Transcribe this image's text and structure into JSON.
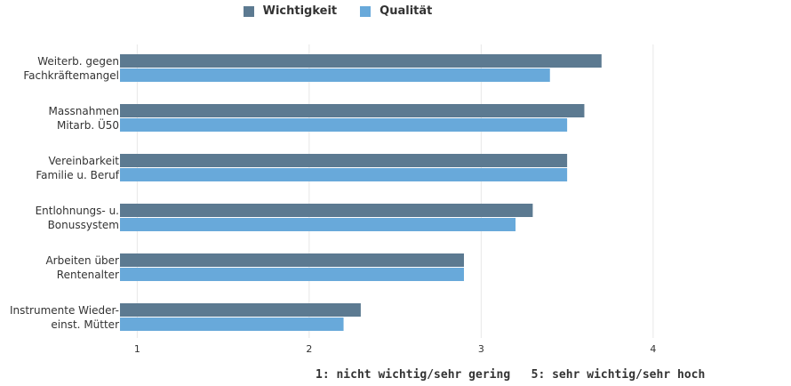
{
  "colors": {
    "wichtigkeit": "#5c7a91",
    "qualitaet": "#68a9da",
    "grid": "#e6e6e6"
  },
  "legend": {
    "items": [
      {
        "label": "Wichtigkeit",
        "color": "#5c7a91"
      },
      {
        "label": "Qualität",
        "color": "#68a9da"
      }
    ]
  },
  "footnote": "1: nicht wichtig/sehr gering   5: sehr wichtig/sehr hoch",
  "chart_data": {
    "type": "bar",
    "orientation": "horizontal",
    "categories": [
      [
        "Weiterb. gegen",
        "Fachkräftemangel"
      ],
      [
        "Massnahmen",
        "Mitarb. Ü50"
      ],
      [
        "Vereinbarkeit",
        "Familie u. Beruf"
      ],
      [
        "Entlohnungs- u.",
        "Bonussystem"
      ],
      [
        "Arbeiten über",
        "Rentenalter"
      ],
      [
        "Instrumente Wieder-",
        "einst. Mütter"
      ]
    ],
    "series": [
      {
        "name": "Wichtigkeit",
        "values": [
          3.7,
          3.6,
          3.5,
          3.3,
          2.9,
          2.3
        ]
      },
      {
        "name": "Qualität",
        "values": [
          3.4,
          3.5,
          3.5,
          3.2,
          2.9,
          2.2
        ]
      }
    ],
    "xlim": [
      0.9,
      4.75
    ],
    "xticks": [
      "1",
      "2",
      "3",
      "4"
    ],
    "grid": true,
    "legend_position": "top"
  }
}
